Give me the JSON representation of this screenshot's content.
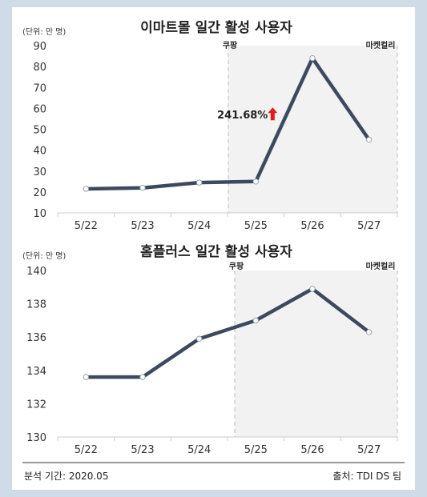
{
  "footer": {
    "left": "분석 기간: 2020.05",
    "right": "출처: TDI DS 팀"
  },
  "chart_data": [
    {
      "type": "line",
      "title": "이마트몰 일간 활성 사용자",
      "unit_label": "(단위: 만 명)",
      "categories": [
        "5/22",
        "5/23",
        "5/24",
        "5/25",
        "5/26",
        "5/27"
      ],
      "values": [
        21.5,
        22,
        24.5,
        25,
        84,
        45
      ],
      "ylim": [
        10,
        90
      ],
      "yticks": [
        10,
        20,
        30,
        40,
        50,
        60,
        70,
        80,
        90
      ],
      "annotation": {
        "text": "241.68%",
        "at_category": "5/25",
        "at_value": 57,
        "arrow": "up",
        "arrow_color": "#e8191b"
      },
      "regions": [
        {
          "label": "쿠팡",
          "from_category": "5/25"
        },
        {
          "label": "마켓컬리",
          "to_category": "5/27"
        }
      ],
      "line_color": "#3d4a5e"
    },
    {
      "type": "line",
      "title": "홈플러스 일간 활성 사용자",
      "unit_label": "(단위: 만 명)",
      "categories": [
        "5/22",
        "5/23",
        "5/24",
        "5/25",
        "5/26",
        "5/27"
      ],
      "values": [
        133.6,
        133.6,
        135.9,
        137.0,
        138.9,
        136.3
      ],
      "ylim": [
        130,
        140
      ],
      "yticks": [
        130,
        132,
        134,
        136,
        138,
        140
      ],
      "regions": [
        {
          "label": "쿠팡",
          "from_category": "5/25"
        },
        {
          "label": "마켓컬리",
          "to_category": "5/27"
        }
      ],
      "line_color": "#3d4a5e"
    }
  ]
}
